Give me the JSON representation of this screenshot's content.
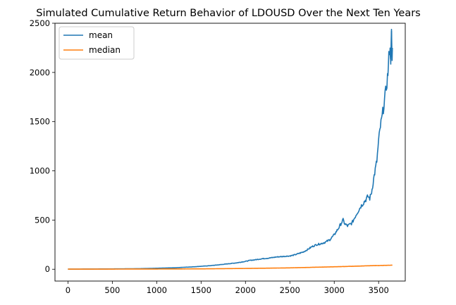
{
  "chart_data": {
    "type": "line",
    "title": "Simulated Cumulative Return Behavior of LDOUSD Over the Next Ten Years",
    "xlabel": "",
    "ylabel": "",
    "xlim": [
      -146,
      3800
    ],
    "ylim": [
      -120,
      2500
    ],
    "xticks": [
      0,
      500,
      1000,
      1500,
      2000,
      2500,
      3000,
      3500
    ],
    "yticks": [
      0,
      500,
      1000,
      1500,
      2000,
      2500
    ],
    "grid": false,
    "legend": "top-left",
    "series": [
      {
        "name": "mean",
        "color": "#1f77b4",
        "points": [
          [
            0,
            1
          ],
          [
            200,
            2
          ],
          [
            400,
            3
          ],
          [
            600,
            4
          ],
          [
            800,
            6
          ],
          [
            1000,
            10
          ],
          [
            1200,
            15
          ],
          [
            1400,
            24
          ],
          [
            1500,
            30
          ],
          [
            1600,
            36
          ],
          [
            1700,
            45
          ],
          [
            1800,
            55
          ],
          [
            1900,
            65
          ],
          [
            2000,
            80
          ],
          [
            2050,
            90
          ],
          [
            2100,
            95
          ],
          [
            2150,
            102
          ],
          [
            2200,
            108
          ],
          [
            2250,
            112
          ],
          [
            2300,
            118
          ],
          [
            2350,
            125
          ],
          [
            2400,
            128
          ],
          [
            2450,
            132
          ],
          [
            2500,
            135
          ],
          [
            2550,
            145
          ],
          [
            2600,
            160
          ],
          [
            2650,
            175
          ],
          [
            2700,
            200
          ],
          [
            2750,
            230
          ],
          [
            2800,
            250
          ],
          [
            2850,
            260
          ],
          [
            2900,
            275
          ],
          [
            2950,
            300
          ],
          [
            3000,
            350
          ],
          [
            3050,
            420
          ],
          [
            3080,
            470
          ],
          [
            3100,
            500
          ],
          [
            3120,
            460
          ],
          [
            3150,
            440
          ],
          [
            3200,
            470
          ],
          [
            3250,
            560
          ],
          [
            3300,
            640
          ],
          [
            3350,
            700
          ],
          [
            3380,
            740
          ],
          [
            3400,
            720
          ],
          [
            3420,
            780
          ],
          [
            3450,
            950
          ],
          [
            3480,
            1100
          ],
          [
            3500,
            1300
          ],
          [
            3520,
            1450
          ],
          [
            3540,
            1550
          ],
          [
            3560,
            1680
          ],
          [
            3580,
            1800
          ],
          [
            3600,
            1950
          ],
          [
            3610,
            2050
          ],
          [
            3620,
            2250
          ],
          [
            3630,
            2200
          ],
          [
            3640,
            2300
          ],
          [
            3645,
            2380
          ],
          [
            3650,
            2150
          ],
          [
            3655,
            2250
          ]
        ],
        "trend_points": [
          [
            3630,
            2200
          ],
          [
            3635,
            2100
          ],
          [
            3640,
            2250
          ],
          [
            3645,
            2390
          ],
          [
            3650,
            2150
          ],
          [
            3655,
            2250
          ]
        ]
      },
      {
        "name": "median",
        "color": "#ff7f0e",
        "points": [
          [
            0,
            1
          ],
          [
            500,
            1.5
          ],
          [
            1000,
            2.5
          ],
          [
            1500,
            4
          ],
          [
            2000,
            8
          ],
          [
            2500,
            14
          ],
          [
            3000,
            25
          ],
          [
            3200,
            30
          ],
          [
            3400,
            36
          ],
          [
            3500,
            38
          ],
          [
            3600,
            40
          ],
          [
            3655,
            42
          ]
        ]
      }
    ]
  }
}
